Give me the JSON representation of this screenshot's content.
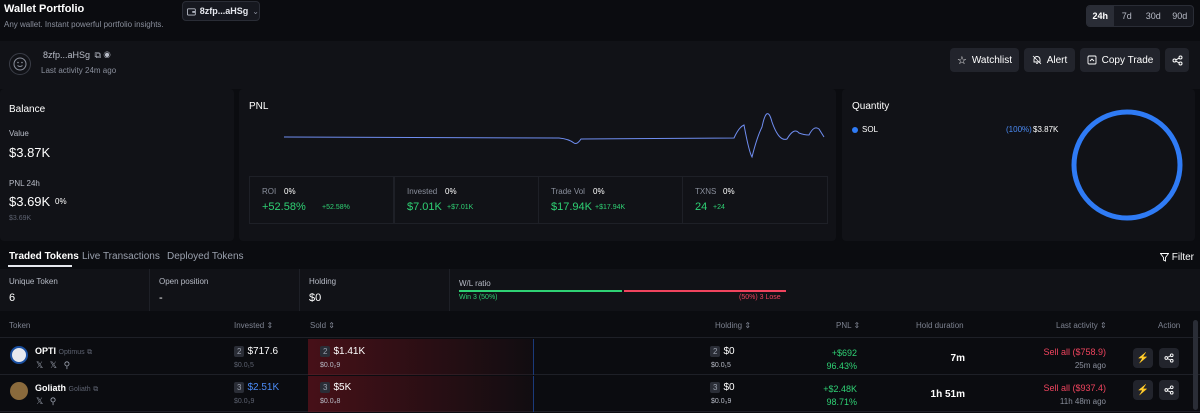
{
  "header": {
    "title": "Wallet Portfolio",
    "subtitle": "Any wallet. Instant powerful portfolio insights.",
    "wallet_selector": "8zfp...aHSg",
    "ranges": [
      "24h",
      "7d",
      "30d",
      "90d"
    ],
    "active_range": "24h"
  },
  "profile": {
    "address": "8zfp...aHSg",
    "last_activity": "Last activity 24m ago",
    "buttons": {
      "watchlist": "Watchlist",
      "alert": "Alert",
      "copy_trade": "Copy Trade"
    }
  },
  "balance": {
    "title": "Balance",
    "value_label": "Value",
    "value": "$3.87K",
    "pnl_label": "PNL 24h",
    "pnl_value": "$3.69K",
    "pnl_pct": "0%",
    "pnl_small": "$3.69K"
  },
  "pnl": {
    "title": "PNL",
    "stats": [
      {
        "label": "ROI",
        "pct": "0%",
        "value": "+52.58%",
        "delta": "+52.58%"
      },
      {
        "label": "Invested",
        "pct": "0%",
        "value": "$7.01K",
        "delta": "+$7.01K"
      },
      {
        "label": "Trade Vol",
        "pct": "0%",
        "value": "$17.94K",
        "delta": "+$17.94K"
      },
      {
        "label": "TXNS",
        "pct": "0%",
        "value": "24",
        "delta": "+24"
      }
    ]
  },
  "quantity": {
    "title": "Quantity",
    "token": "SOL",
    "pct": "(100%)",
    "value": "$3.87K",
    "share": 1.0
  },
  "tabs": {
    "items": [
      "Traded Tokens",
      "Live Transactions",
      "Deployed Tokens"
    ],
    "active": "Traded Tokens",
    "filter": "Filter"
  },
  "summary": {
    "unique_label": "Unique Token",
    "unique_value": "6",
    "open_label": "Open position",
    "open_value": "-",
    "holding_label": "Holding",
    "holding_value": "$0",
    "wl_label": "W/L ratio",
    "win_text": "Win 3 (50%)",
    "lose_text": "(50%) 3 Lose",
    "win_share": 0.5
  },
  "table": {
    "headers": {
      "token": "Token",
      "invested": "Invested",
      "sold": "Sold",
      "holding": "Holding",
      "pnl": "PNL",
      "hold_duration": "Hold duration",
      "last_activity": "Last activity",
      "action": "Action"
    },
    "rows": [
      {
        "symbol": "OPTI",
        "name": "Optimus",
        "invested_count": "2",
        "invested": "$717.6",
        "invested_sub": "$0.0₁5",
        "sold_count": "2",
        "sold": "$1.41K",
        "sold_sub": "$0.0₂9",
        "holding_count": "2",
        "holding": "$0",
        "holding_sub": "$0.0₁5",
        "pnl": "+$692",
        "pnl_pct": "96.43%",
        "duration": "7m",
        "last_action": "Sell all ($758.9)",
        "last_time": "25m ago"
      },
      {
        "symbol": "Goliath",
        "name": "Goliath",
        "invested_count": "3",
        "invested": "$2.51K",
        "invested_sub": "$0.0₃9",
        "sold_count": "3",
        "sold": "$5K",
        "sold_sub": "$0.0₄8",
        "holding_count": "3",
        "holding": "$0",
        "holding_sub": "$0.0₃9",
        "pnl": "+$2.48K",
        "pnl_pct": "98.71%",
        "duration": "1h 51m",
        "last_action": "Sell all ($937.4)",
        "last_time": "11h 48m ago"
      }
    ]
  },
  "colors": {
    "accent": "#2f7bf5",
    "positive": "#2fd174",
    "negative": "#f0445e",
    "background": "#0b0c10",
    "panel": "#111217"
  }
}
